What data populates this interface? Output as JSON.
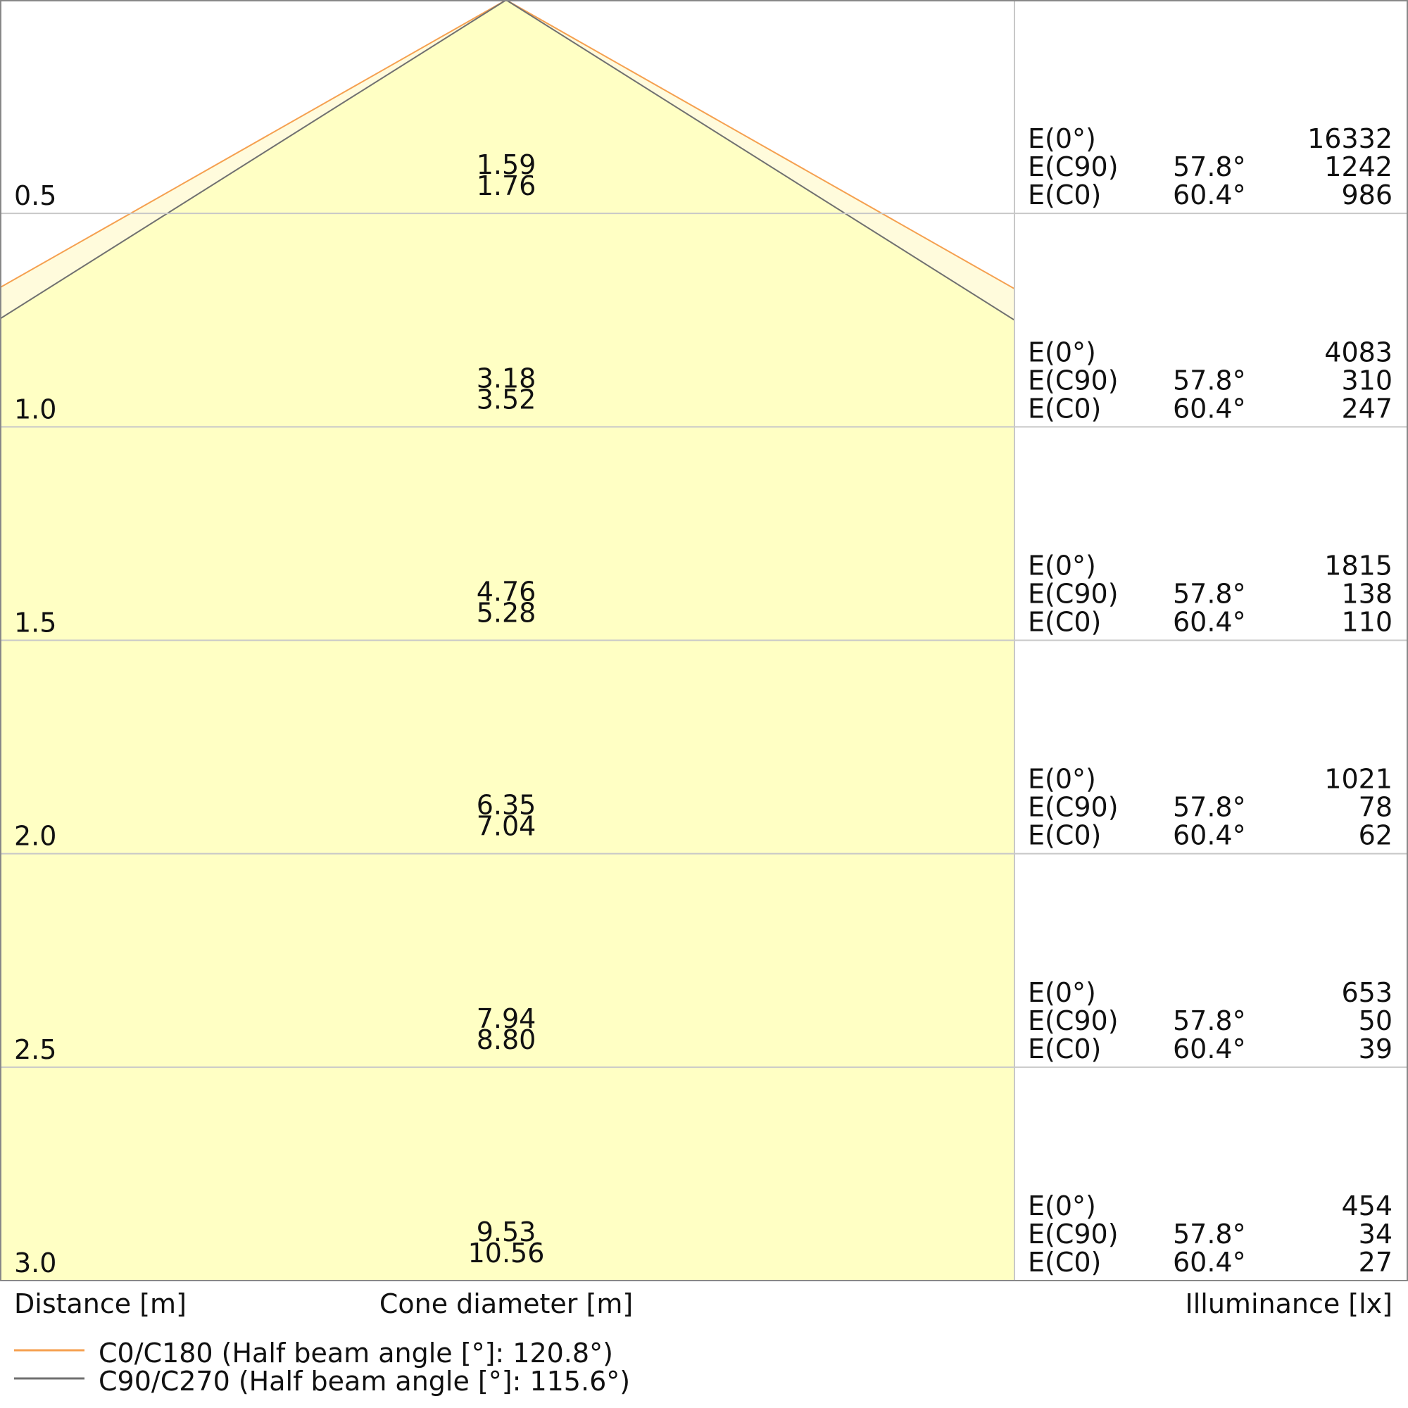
{
  "chart_data": {
    "type": "area",
    "xlabel": "Cone diameter [m]",
    "ylabel": "Distance [m]",
    "right_label": "Illuminance [lx]",
    "distances": [
      "0.5",
      "1.0",
      "1.5",
      "2.0",
      "2.5",
      "3.0"
    ],
    "distance_values": [
      0.5,
      1.0,
      1.5,
      2.0,
      2.5,
      3.0
    ],
    "ylim": [
      0,
      3.0
    ],
    "grid": true,
    "series": [
      {
        "name": "C0/C180 (Half beam angle [°]: 120.8°)",
        "half_angle": 60.4,
        "color": "#f5a050",
        "fill": "#fffbdc",
        "cone_diameters": [
          "1.76",
          "3.52",
          "5.28",
          "7.04",
          "8.80",
          "10.56"
        ]
      },
      {
        "name": "C90/C270 (Half beam angle [°]: 115.6°)",
        "half_angle": 57.8,
        "color": "#707070",
        "fill": "#ffffc4",
        "cone_diameters": [
          "1.59",
          "3.18",
          "4.76",
          "6.35",
          "7.94",
          "9.53"
        ]
      }
    ],
    "illuminance": [
      {
        "e0_label": "E(0°)",
        "e0": "16332",
        "c90_label": "E(C90)",
        "c90_angle": "57.8°",
        "c90": "1242",
        "c0_label": "E(C0)",
        "c0_angle": "60.4°",
        "c0": "986"
      },
      {
        "e0_label": "E(0°)",
        "e0": "4083",
        "c90_label": "E(C90)",
        "c90_angle": "57.8°",
        "c90": "310",
        "c0_label": "E(C0)",
        "c0_angle": "60.4°",
        "c0": "247"
      },
      {
        "e0_label": "E(0°)",
        "e0": "1815",
        "c90_label": "E(C90)",
        "c90_angle": "57.8°",
        "c90": "138",
        "c0_label": "E(C0)",
        "c0_angle": "60.4°",
        "c0": "110"
      },
      {
        "e0_label": "E(0°)",
        "e0": "1021",
        "c90_label": "E(C90)",
        "c90_angle": "57.8°",
        "c90": "78",
        "c0_label": "E(C0)",
        "c0_angle": "60.4°",
        "c0": "62"
      },
      {
        "e0_label": "E(0°)",
        "e0": "653",
        "c90_label": "E(C90)",
        "c90_angle": "57.8°",
        "c90": "50",
        "c0_label": "E(C0)",
        "c0_angle": "60.4°",
        "c0": "39"
      },
      {
        "e0_label": "E(0°)",
        "e0": "454",
        "c90_label": "E(C90)",
        "c90_angle": "57.8°",
        "c90": "34",
        "c0_label": "E(C0)",
        "c0_angle": "60.4°",
        "c0": "27"
      }
    ]
  }
}
